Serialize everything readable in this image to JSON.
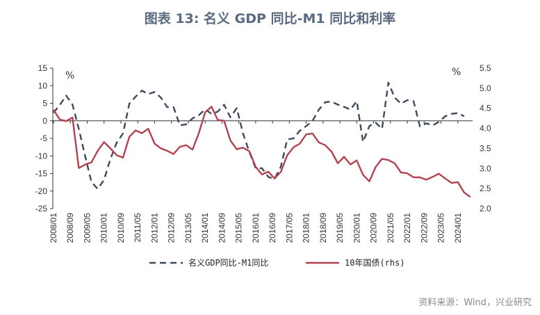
{
  "title": "图表 13: 名义 GDP 同比-M1 同比和利率",
  "source": "资料来源：Wind，兴业研究",
  "chart_data": {
    "type": "line",
    "title": "图表 13: 名义 GDP 同比-M1 同比和利率",
    "left_unit": "%",
    "right_unit": "%",
    "ylim_left": [
      -25,
      15
    ],
    "yticks_left": [
      15,
      10,
      5,
      0,
      -5,
      -10,
      -15,
      -20,
      -25
    ],
    "ylim_right": [
      2.0,
      5.5
    ],
    "yticks_right": [
      "5.5",
      "5.0",
      "4.5",
      "4.0",
      "3.5",
      "3.0",
      "2.5",
      "2.0"
    ],
    "x_start": "2008/01",
    "x_step_months": 3,
    "x_tick_labels": [
      "2008/01",
      "2008/09",
      "2009/05",
      "2010/01",
      "2010/09",
      "2011/05",
      "2012/01",
      "2012/09",
      "2013/05",
      "2014/01",
      "2014/09",
      "2015/05",
      "2016/01",
      "2016/09",
      "2017/05",
      "2018/01",
      "2018/09",
      "2019/05",
      "2020/01",
      "2020/09",
      "2021/05",
      "2022/01",
      "2022/09",
      "2023/05",
      "2024/01"
    ],
    "grid": false,
    "legend_position": "bottom",
    "series": [
      {
        "name": "名义GDP同比-M1同比",
        "axis": "left",
        "style": "dashed",
        "color": "#3d4a5e",
        "values": [
          2.3,
          4.5,
          7.2,
          4.6,
          -2.3,
          -10,
          -17.4,
          -19.4,
          -16.8,
          -10.9,
          -6.2,
          -3.6,
          4.9,
          6.9,
          8.6,
          7.6,
          8.2,
          6.6,
          3.9,
          3.9,
          -1.3,
          -1.0,
          0.7,
          1.6,
          3.3,
          2.0,
          2.6,
          4.6,
          1.0,
          3.6,
          -3.6,
          -8.9,
          -13.5,
          -13.5,
          -16,
          -16.5,
          -13,
          -5.3,
          -5,
          -2.8,
          -1.5,
          0,
          3.2,
          5.3,
          5.5,
          4.6,
          4.0,
          3.2,
          5.6,
          -6,
          -1.5,
          -0.5,
          -2.3,
          10.9,
          6.6,
          4.9,
          5.9,
          5.6,
          -1.6,
          -0.7,
          -1.3,
          -0.3,
          1.3,
          2.0,
          2.2,
          1.3
        ]
      },
      {
        "name": "10年国债(rhs)",
        "axis": "right",
        "style": "solid",
        "color": "#b5414f",
        "values": [
          4.46,
          4.22,
          4.18,
          4.27,
          3.01,
          3.1,
          3.15,
          3.44,
          3.66,
          3.5,
          3.33,
          3.27,
          3.79,
          3.95,
          3.88,
          3.99,
          3.62,
          3.5,
          3.44,
          3.36,
          3.54,
          3.58,
          3.47,
          3.88,
          4.4,
          4.54,
          4.21,
          4.19,
          3.7,
          3.48,
          3.52,
          3.43,
          3.04,
          2.85,
          2.92,
          2.75,
          2.92,
          3.33,
          3.53,
          3.62,
          3.85,
          3.87,
          3.65,
          3.58,
          3.42,
          3.13,
          3.29,
          3.1,
          3.2,
          2.84,
          2.68,
          3.04,
          3.24,
          3.21,
          3.13,
          2.9,
          2.88,
          2.78,
          2.78,
          2.72,
          2.79,
          2.87,
          2.75,
          2.64,
          2.66,
          2.4,
          2.29
        ]
      }
    ]
  }
}
